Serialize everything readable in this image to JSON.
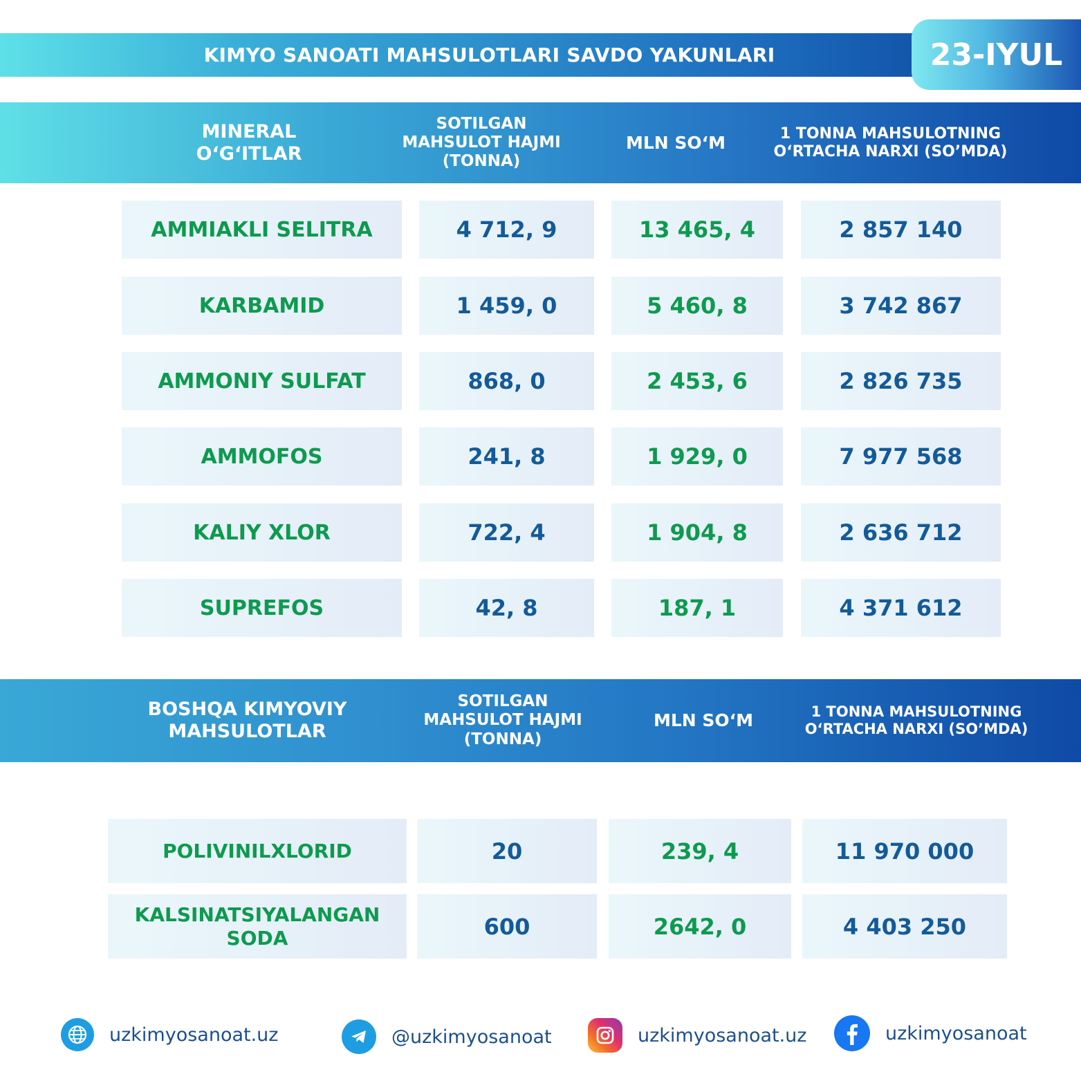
{
  "header": {
    "title": "KIMYO SANOATI MAHSULOTLARI SAVDO YAKUNLARI",
    "date": "23-IYUL"
  },
  "section1": {
    "headers": [
      "MINERAL O‘G‘ITLAR",
      "SOTILGAN MAHSULOT HAJMI (TONNA)",
      "MLN SO‘M",
      "1 TONNA MAHSULOTNING O‘RTACHA NARXI (SO’MDA)"
    ],
    "rows": [
      [
        "AMMIAKLI SELITRA",
        "4 712, 9",
        "13 465, 4",
        "2 857 140"
      ],
      [
        "KARBAMID",
        "1 459, 0",
        "5 460, 8",
        "3 742 867"
      ],
      [
        "AMMONIY SULFAT",
        "868, 0",
        "2 453, 6",
        "2 826 735"
      ],
      [
        "AMMOFOS",
        "241, 8",
        "1 929, 0",
        "7 977 568"
      ],
      [
        "KALIY XLOR",
        "722, 4",
        "1 904, 8",
        "2 636 712"
      ],
      [
        "SUPREFOS",
        "42, 8",
        "187, 1",
        "4 371 612"
      ]
    ]
  },
  "section2": {
    "headers": [
      "BOSHQA KIMYOVIY MAHSULOTLAR",
      "SOTILGAN MAHSULOT HAJMI (TONNA)",
      "MLN SO‘M",
      "1 TONNA MAHSULOTNING O‘RTACHA NARXI (SO’MDA)"
    ],
    "rows": [
      [
        "POLIVINILXLORID",
        "20",
        "239, 4",
        "11 970 000"
      ],
      [
        "KALSINATSIYALANGAN SODA",
        "600",
        "2642, 0",
        "4 403 250"
      ]
    ]
  },
  "footer": {
    "website": "uzkimyosanoat.uz",
    "telegram": "@uzkimyosanoat",
    "instagram": "uzkimyosanoat.uz",
    "facebook": "uzkimyosanoat"
  },
  "icons": [
    "globe-icon",
    "telegram-icon",
    "instagram-icon",
    "facebook-icon"
  ]
}
